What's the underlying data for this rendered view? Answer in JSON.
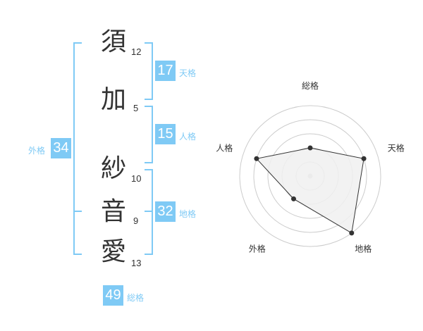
{
  "name": [
    {
      "char": "須",
      "strokes": "12"
    },
    {
      "char": "加",
      "strokes": "5"
    },
    {
      "char": "紗",
      "strokes": "10"
    },
    {
      "char": "音",
      "strokes": "9"
    },
    {
      "char": "愛",
      "strokes": "13"
    }
  ],
  "kaku": {
    "ten": {
      "label": "天格",
      "value": "17"
    },
    "jin": {
      "label": "人格",
      "value": "15"
    },
    "chi": {
      "label": "地格",
      "value": "32"
    },
    "gai": {
      "label": "外格",
      "value": "34"
    },
    "so": {
      "label": "総格",
      "value": "49"
    }
  },
  "colors": {
    "accent": "#7fcaf5",
    "radar_fill": "#f0f0f0",
    "radar_line": "#333333"
  },
  "chart_data": {
    "type": "radar",
    "axes": [
      "総格",
      "天格",
      "地格",
      "外格",
      "人格"
    ],
    "values": [
      2,
      4,
      5,
      2,
      4
    ],
    "range": [
      0,
      5
    ],
    "rings": 5
  }
}
